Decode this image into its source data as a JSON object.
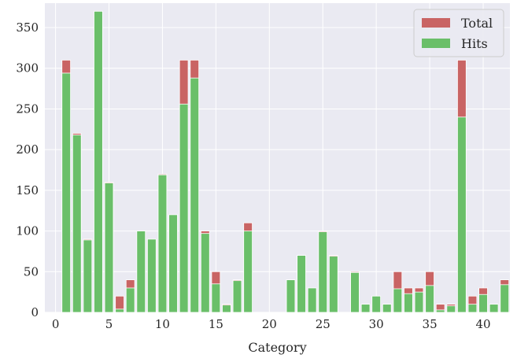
{
  "chart_data": {
    "type": "bar",
    "xlabel": "Category",
    "ylabel": "",
    "xlim": [
      -1,
      42.5
    ],
    "ylim": [
      0,
      380
    ],
    "xticks": [
      "0",
      "5",
      "10",
      "15",
      "20",
      "25",
      "30",
      "35",
      "40"
    ],
    "yticks": [
      "0",
      "50",
      "100",
      "150",
      "200",
      "250",
      "300",
      "350"
    ],
    "grid": true,
    "legend_position": "top-right",
    "categories": [
      1,
      2,
      3,
      4,
      5,
      6,
      7,
      8,
      9,
      10,
      11,
      12,
      13,
      14,
      15,
      16,
      17,
      18,
      19,
      20,
      21,
      22,
      23,
      24,
      25,
      26,
      27,
      28,
      29,
      30,
      31,
      32,
      33,
      34,
      35,
      36,
      37,
      38,
      39,
      40,
      41,
      42
    ],
    "series": [
      {
        "name": "Total",
        "color": "#c96464",
        "values": [
          310,
          220,
          90,
          370,
          160,
          20,
          40,
          100,
          90,
          170,
          120,
          310,
          310,
          100,
          50,
          10,
          40,
          110,
          0,
          0,
          0,
          40,
          70,
          30,
          100,
          70,
          0,
          50,
          10,
          20,
          10,
          50,
          30,
          30,
          50,
          10,
          10,
          310,
          20,
          30,
          10,
          40
        ]
      },
      {
        "name": "Hits",
        "color": "#6abf69",
        "values": [
          294,
          218,
          89,
          370,
          159,
          4,
          30,
          100,
          90,
          169,
          120,
          256,
          288,
          97,
          35,
          9,
          39,
          100,
          0,
          0,
          0,
          40,
          70,
          30,
          99,
          69,
          0,
          49,
          10,
          20,
          10,
          29,
          23,
          25,
          33,
          3,
          8,
          240,
          10,
          22,
          10,
          34
        ]
      }
    ]
  }
}
